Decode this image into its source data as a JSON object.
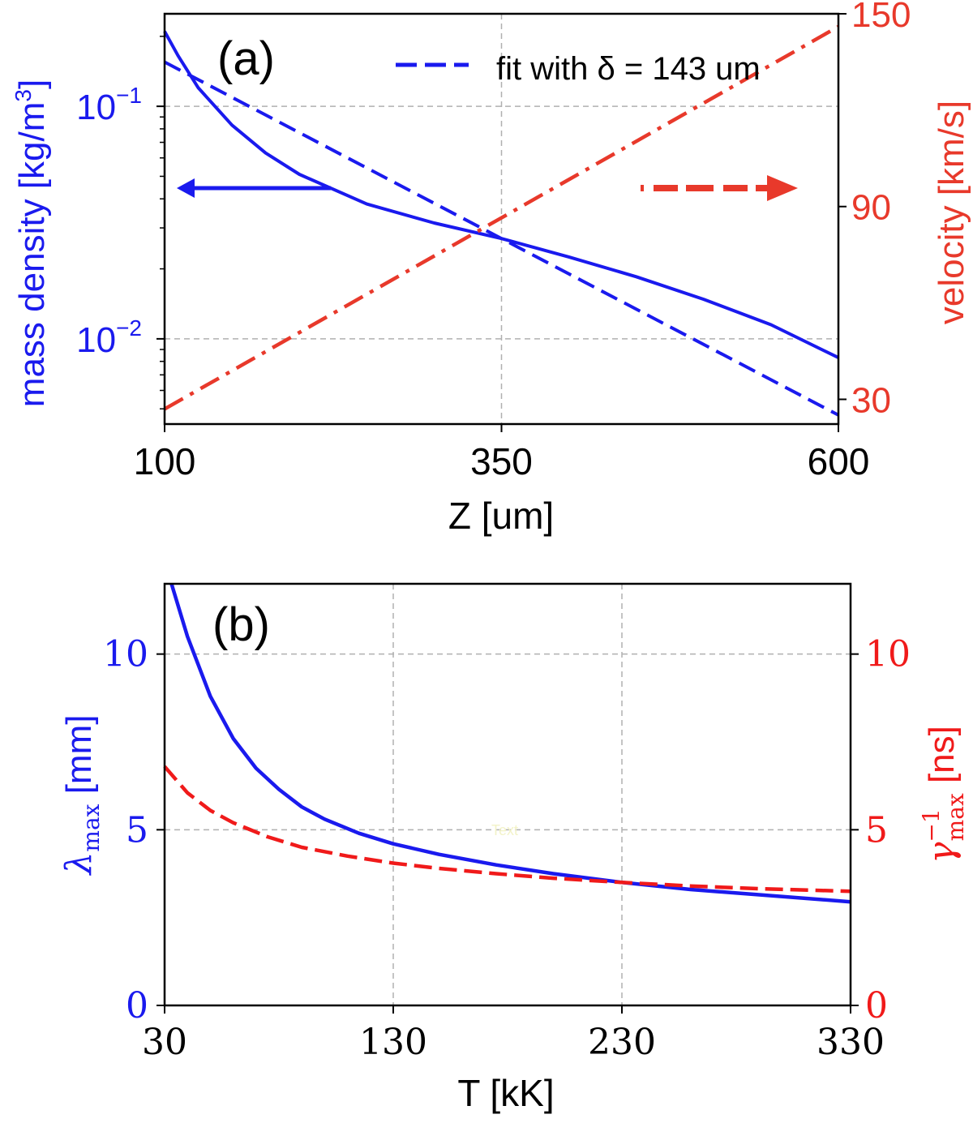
{
  "colors": {
    "blue": "#1a1aee",
    "red": "#e8392b",
    "red_b": "#f01a1a",
    "grid": "#b0b0b0",
    "axis": "#000000",
    "watermark": "#f3f3c8"
  },
  "chart_data": [
    {
      "id": "a",
      "type": "line",
      "panel_label": "(a)",
      "xlabel": "Z [um]",
      "ylabel_left": "mass density [kg/m",
      "ylabel_left_sup": "3",
      "ylabel_left_close": "]",
      "ylabel_right": "velocity [km/s]",
      "xlim": [
        100,
        600
      ],
      "xticks": [
        100,
        350,
        600
      ],
      "xtick_labels": [
        "100",
        "350",
        "600"
      ],
      "ylim_left": [
        0.0043,
        0.25
      ],
      "yscale_left": "log",
      "yticks_left": [
        0.01,
        0.1
      ],
      "ytick_left_base": [
        "10",
        "10"
      ],
      "ytick_left_exp": [
        "−2",
        "−1"
      ],
      "ylim_right": [
        22.3,
        150
      ],
      "yticks_right": [
        30,
        90,
        150
      ],
      "ytick_right_labels": [
        "30",
        "90",
        "150"
      ],
      "grid": "dashed",
      "legend": {
        "label": "fit with δ = 143 um",
        "style": "dashed",
        "placement": "top-right"
      },
      "series": [
        {
          "name": "mass density",
          "axis": "left",
          "style": "solid",
          "x": [
            100,
            110,
            125,
            150,
            175,
            200,
            250,
            300,
            350,
            400,
            450,
            500,
            550,
            600
          ],
          "values": [
            0.21,
            0.165,
            0.12,
            0.083,
            0.063,
            0.051,
            0.038,
            0.0315,
            0.027,
            0.0225,
            0.0185,
            0.0148,
            0.0115,
            0.0083
          ]
        },
        {
          "name": "fit with δ = 143 um",
          "axis": "left",
          "style": "dashed",
          "x": [
            100,
            600
          ],
          "values": [
            0.155,
            0.0047
          ]
        },
        {
          "name": "velocity",
          "axis": "right",
          "style": "dashdot",
          "x": [
            100,
            600
          ],
          "values": [
            27,
            146
          ]
        }
      ],
      "annotations": [
        {
          "type": "arrow",
          "direction": "left",
          "color": "blue",
          "style": "solid"
        },
        {
          "type": "arrow",
          "direction": "right",
          "color": "red",
          "style": "dashdot"
        }
      ]
    },
    {
      "id": "b",
      "type": "line",
      "panel_label": "(b)",
      "xlabel": "T [kK]",
      "ylabel_left_sym": "λ",
      "ylabel_left_sub": "max",
      "ylabel_left_unit": " [mm]",
      "ylabel_right_sym": "γ",
      "ylabel_right_sup": "−1",
      "ylabel_right_sub": "max",
      "ylabel_right_unit": " [ns]",
      "xlim": [
        30,
        330
      ],
      "xticks": [
        30,
        130,
        230,
        330
      ],
      "xtick_labels": [
        "30",
        "130",
        "230",
        "330"
      ],
      "ylim_left": [
        0,
        12
      ],
      "yticks_left": [
        0,
        5,
        10
      ],
      "ytick_left_labels": [
        "0",
        "5",
        "10"
      ],
      "ylim_right": [
        0,
        12
      ],
      "yticks_right": [
        0,
        5,
        10
      ],
      "ytick_right_labels": [
        "0",
        "5",
        "10"
      ],
      "grid": "dashed",
      "watermark_text": "Text",
      "series": [
        {
          "name": "λmax",
          "axis": "left",
          "style": "solid",
          "x": [
            33,
            40,
            50,
            60,
            70,
            80,
            90,
            100,
            115,
            130,
            150,
            175,
            200,
            230,
            260,
            290,
            330
          ],
          "values": [
            12.0,
            10.5,
            8.8,
            7.6,
            6.75,
            6.15,
            5.65,
            5.3,
            4.9,
            4.6,
            4.3,
            4.0,
            3.75,
            3.5,
            3.3,
            3.15,
            2.95
          ]
        },
        {
          "name": "γmax⁻¹",
          "axis": "right",
          "style": "dashed",
          "x": [
            30,
            40,
            50,
            60,
            75,
            90,
            110,
            130,
            150,
            175,
            200,
            230,
            260,
            290,
            330
          ],
          "values": [
            6.8,
            6.05,
            5.55,
            5.2,
            4.8,
            4.5,
            4.25,
            4.05,
            3.9,
            3.75,
            3.62,
            3.5,
            3.4,
            3.32,
            3.25
          ]
        }
      ]
    }
  ]
}
